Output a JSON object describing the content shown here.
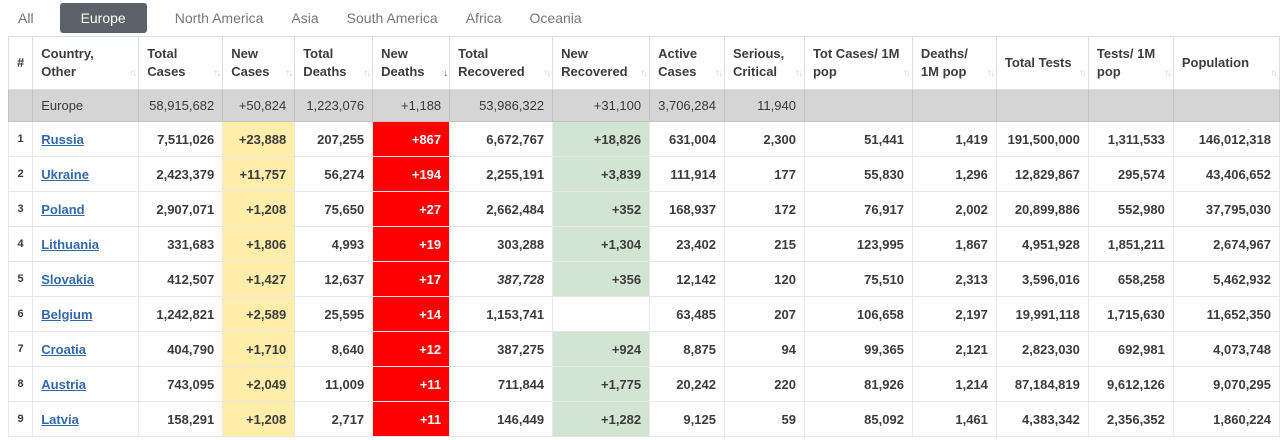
{
  "colors": {
    "tab_active_bg": "#5b6269",
    "new_cases_bg": "#ffeeaa",
    "new_deaths_bg": "#ff0000",
    "new_recovered_bg": "#d2e5d2",
    "summary_row_bg": "#d5d5d5",
    "country_link": "#3568a9",
    "population_link": "#4a84c4"
  },
  "tabs": [
    {
      "label": "All",
      "active": false
    },
    {
      "label": "Europe",
      "active": true
    },
    {
      "label": "North America",
      "active": false
    },
    {
      "label": "Asia",
      "active": false
    },
    {
      "label": "South America",
      "active": false
    },
    {
      "label": "Africa",
      "active": false
    },
    {
      "label": "Oceania",
      "active": false
    }
  ],
  "table": {
    "columns": [
      {
        "key": "rank",
        "label": "#",
        "sort": "none",
        "width": 22
      },
      {
        "key": "country",
        "label": "Country, Other",
        "sort": "both",
        "width": 106
      },
      {
        "key": "total_cases",
        "label": "Total Cases",
        "sort": "both",
        "width": 84
      },
      {
        "key": "new_cases",
        "label": "New Cases",
        "sort": "both",
        "width": 72
      },
      {
        "key": "total_deaths",
        "label": "Total Deaths",
        "sort": "both",
        "width": 78
      },
      {
        "key": "new_deaths",
        "label": "New Deaths",
        "sort": "desc",
        "width": 77
      },
      {
        "key": "total_recovered",
        "label": "Total Recovered",
        "sort": "both",
        "width": 103
      },
      {
        "key": "new_recovered",
        "label": "New Recovered",
        "sort": "both",
        "width": 97
      },
      {
        "key": "active_cases",
        "label": "Active Cases",
        "sort": "both",
        "width": 74
      },
      {
        "key": "serious_critical",
        "label": "Serious, Critical",
        "sort": "both",
        "width": 80
      },
      {
        "key": "tot_cases_1m",
        "label": "Tot Cases/ 1M pop",
        "sort": "both",
        "width": 108
      },
      {
        "key": "deaths_1m",
        "label": "Deaths/ 1M pop",
        "sort": "both",
        "width": 84
      },
      {
        "key": "total_tests",
        "label": "Total Tests",
        "sort": "both",
        "width": 92
      },
      {
        "key": "tests_1m",
        "label": "Tests/ 1M pop",
        "sort": "both",
        "width": 85
      },
      {
        "key": "population",
        "label": "Population",
        "sort": "both",
        "width": 106
      }
    ],
    "summary": {
      "country": "Europe",
      "total_cases": "58,915,682",
      "new_cases": "+50,824",
      "total_deaths": "1,223,076",
      "new_deaths": "+1,188",
      "total_recovered": "53,986,322",
      "new_recovered": "+31,100",
      "active_cases": "3,706,284",
      "serious_critical": "11,940",
      "tot_cases_1m": "",
      "deaths_1m": "",
      "total_tests": "",
      "tests_1m": "",
      "population": ""
    },
    "rows": [
      {
        "rank": "1",
        "country": "Russia",
        "total_cases": "7,511,026",
        "new_cases": "+23,888",
        "total_deaths": "207,255",
        "new_deaths": "+867",
        "total_recovered": "6,672,767",
        "recovered_italic": false,
        "new_recovered": "+18,826",
        "active_cases": "631,004",
        "serious_critical": "2,300",
        "tot_cases_1m": "51,441",
        "deaths_1m": "1,419",
        "total_tests": "191,500,000",
        "tests_1m": "1,311,533",
        "population": "146,012,318"
      },
      {
        "rank": "2",
        "country": "Ukraine",
        "total_cases": "2,423,379",
        "new_cases": "+11,757",
        "total_deaths": "56,274",
        "new_deaths": "+194",
        "total_recovered": "2,255,191",
        "recovered_italic": false,
        "new_recovered": "+3,839",
        "active_cases": "111,914",
        "serious_critical": "177",
        "tot_cases_1m": "55,830",
        "deaths_1m": "1,296",
        "total_tests": "12,829,867",
        "tests_1m": "295,574",
        "population": "43,406,652"
      },
      {
        "rank": "3",
        "country": "Poland",
        "total_cases": "2,907,071",
        "new_cases": "+1,208",
        "total_deaths": "75,650",
        "new_deaths": "+27",
        "total_recovered": "2,662,484",
        "recovered_italic": false,
        "new_recovered": "+352",
        "active_cases": "168,937",
        "serious_critical": "172",
        "tot_cases_1m": "76,917",
        "deaths_1m": "2,002",
        "total_tests": "20,899,886",
        "tests_1m": "552,980",
        "population": "37,795,030"
      },
      {
        "rank": "4",
        "country": "Lithuania",
        "total_cases": "331,683",
        "new_cases": "+1,806",
        "total_deaths": "4,993",
        "new_deaths": "+19",
        "total_recovered": "303,288",
        "recovered_italic": false,
        "new_recovered": "+1,304",
        "active_cases": "23,402",
        "serious_critical": "215",
        "tot_cases_1m": "123,995",
        "deaths_1m": "1,867",
        "total_tests": "4,951,928",
        "tests_1m": "1,851,211",
        "population": "2,674,967"
      },
      {
        "rank": "5",
        "country": "Slovakia",
        "total_cases": "412,507",
        "new_cases": "+1,427",
        "total_deaths": "12,637",
        "new_deaths": "+17",
        "total_recovered": "387,728",
        "recovered_italic": true,
        "new_recovered": "+356",
        "active_cases": "12,142",
        "serious_critical": "120",
        "tot_cases_1m": "75,510",
        "deaths_1m": "2,313",
        "total_tests": "3,596,016",
        "tests_1m": "658,258",
        "population": "5,462,932"
      },
      {
        "rank": "6",
        "country": "Belgium",
        "total_cases": "1,242,821",
        "new_cases": "+2,589",
        "total_deaths": "25,595",
        "new_deaths": "+14",
        "total_recovered": "1,153,741",
        "recovered_italic": false,
        "new_recovered": "",
        "active_cases": "63,485",
        "serious_critical": "207",
        "tot_cases_1m": "106,658",
        "deaths_1m": "2,197",
        "total_tests": "19,991,118",
        "tests_1m": "1,715,630",
        "population": "11,652,350"
      },
      {
        "rank": "7",
        "country": "Croatia",
        "total_cases": "404,790",
        "new_cases": "+1,710",
        "total_deaths": "8,640",
        "new_deaths": "+12",
        "total_recovered": "387,275",
        "recovered_italic": false,
        "new_recovered": "+924",
        "active_cases": "8,875",
        "serious_critical": "94",
        "tot_cases_1m": "99,365",
        "deaths_1m": "2,121",
        "total_tests": "2,823,030",
        "tests_1m": "692,981",
        "population": "4,073,748"
      },
      {
        "rank": "8",
        "country": "Austria",
        "total_cases": "743,095",
        "new_cases": "+2,049",
        "total_deaths": "11,009",
        "new_deaths": "+11",
        "total_recovered": "711,844",
        "recovered_italic": false,
        "new_recovered": "+1,775",
        "active_cases": "20,242",
        "serious_critical": "220",
        "tot_cases_1m": "81,926",
        "deaths_1m": "1,214",
        "total_tests": "87,184,819",
        "tests_1m": "9,612,126",
        "population": "9,070,295"
      },
      {
        "rank": "9",
        "country": "Latvia",
        "total_cases": "158,291",
        "new_cases": "+1,208",
        "total_deaths": "2,717",
        "new_deaths": "+11",
        "total_recovered": "146,449",
        "recovered_italic": false,
        "new_recovered": "+1,282",
        "active_cases": "9,125",
        "serious_critical": "59",
        "tot_cases_1m": "85,092",
        "deaths_1m": "1,461",
        "total_tests": "4,383,342",
        "tests_1m": "2,356,352",
        "population": "1,860,224"
      }
    ]
  }
}
